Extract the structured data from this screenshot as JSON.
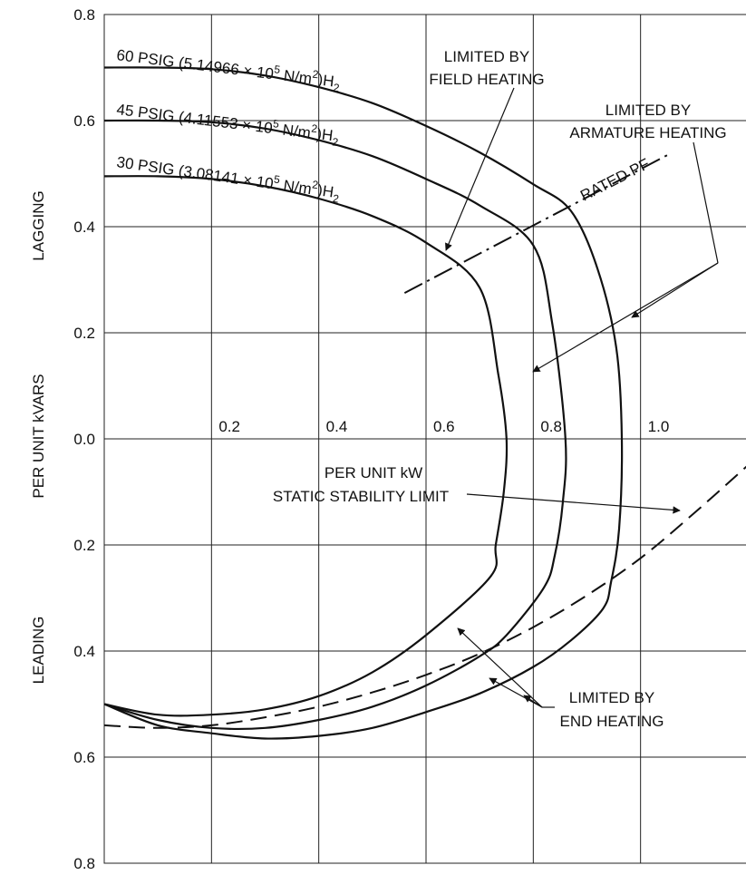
{
  "chart_data": {
    "type": "line",
    "xlabel": "PER UNIT kW",
    "ylabel": "PER UNIT kVARS",
    "ylabel_top": "LAGGING",
    "ylabel_bottom": "LEADING",
    "xlim": [
      0,
      1.2
    ],
    "ylim": [
      -0.8,
      0.8
    ],
    "grid": true,
    "x_ticks": [
      {
        "value": 0.2,
        "label": "0.2"
      },
      {
        "value": 0.4,
        "label": "0.4"
      },
      {
        "value": 0.6,
        "label": "0.6"
      },
      {
        "value": 0.8,
        "label": "0.8"
      },
      {
        "value": 1.0,
        "label": "1.0"
      }
    ],
    "y_ticks": [
      {
        "value": 0.8,
        "label": "0.8"
      },
      {
        "value": 0.6,
        "label": "0.6"
      },
      {
        "value": 0.4,
        "label": "0.4"
      },
      {
        "value": 0.2,
        "label": "0.2"
      },
      {
        "value": 0.0,
        "label": "0.0"
      },
      {
        "value": -0.2,
        "label": "0.2"
      },
      {
        "value": -0.4,
        "label": "0.4"
      },
      {
        "value": -0.6,
        "label": "0.6"
      },
      {
        "value": -0.8,
        "label": "0.8"
      }
    ],
    "series": [
      {
        "name": "60 PSIG",
        "label_parts": {
          "main": "60 PSIG (5.14966 ",
          "times": "×",
          "mid": " 10",
          "exp": "5",
          "unit": " N/m",
          "unit_exp": "2",
          "close": ")H",
          "sub": "2"
        },
        "points": [
          [
            0,
            0.7
          ],
          [
            0.1,
            0.7
          ],
          [
            0.2,
            0.697
          ],
          [
            0.3,
            0.685
          ],
          [
            0.4,
            0.663
          ],
          [
            0.5,
            0.633
          ],
          [
            0.6,
            0.59
          ],
          [
            0.7,
            0.54
          ],
          [
            0.8,
            0.48
          ],
          [
            0.87,
            0.43
          ],
          [
            0.92,
            0.32
          ],
          [
            0.955,
            0.17
          ],
          [
            0.965,
            0.0
          ],
          [
            0.96,
            -0.17
          ],
          [
            0.945,
            -0.27
          ],
          [
            0.93,
            -0.32
          ],
          [
            0.87,
            -0.38
          ],
          [
            0.8,
            -0.43
          ],
          [
            0.7,
            -0.48
          ],
          [
            0.6,
            -0.515
          ],
          [
            0.5,
            -0.545
          ],
          [
            0.4,
            -0.56
          ],
          [
            0.3,
            -0.565
          ],
          [
            0.2,
            -0.555
          ],
          [
            0.1,
            -0.54
          ],
          [
            0,
            -0.5
          ]
        ]
      },
      {
        "name": "45 PSIG",
        "label_parts": {
          "main": "45 PSIG (4.11553 ",
          "times": "×",
          "mid": " 10",
          "exp": "5",
          "unit": " N/m",
          "unit_exp": "2",
          "close": ")H",
          "sub": "2"
        },
        "points": [
          [
            0,
            0.6
          ],
          [
            0.1,
            0.6
          ],
          [
            0.2,
            0.597
          ],
          [
            0.3,
            0.585
          ],
          [
            0.4,
            0.563
          ],
          [
            0.5,
            0.533
          ],
          [
            0.6,
            0.49
          ],
          [
            0.7,
            0.44
          ],
          [
            0.8,
            0.365
          ],
          [
            0.835,
            0.22
          ],
          [
            0.86,
            0.0
          ],
          [
            0.855,
            -0.12
          ],
          [
            0.84,
            -0.22
          ],
          [
            0.82,
            -0.28
          ],
          [
            0.75,
            -0.37
          ],
          [
            0.7,
            -0.41
          ],
          [
            0.6,
            -0.465
          ],
          [
            0.5,
            -0.505
          ],
          [
            0.4,
            -0.53
          ],
          [
            0.3,
            -0.545
          ],
          [
            0.2,
            -0.545
          ],
          [
            0.1,
            -0.53
          ],
          [
            0,
            -0.5
          ]
        ]
      },
      {
        "name": "30 PSIG",
        "label_parts": {
          "main": "30 PSIG (3.08141 ",
          "times": "×",
          "mid": " 10",
          "exp": "5",
          "unit": " N/m",
          "unit_exp": "2",
          "close": ")H",
          "sub": "2"
        },
        "points": [
          [
            0,
            0.495
          ],
          [
            0.1,
            0.495
          ],
          [
            0.2,
            0.49
          ],
          [
            0.3,
            0.476
          ],
          [
            0.4,
            0.453
          ],
          [
            0.5,
            0.42
          ],
          [
            0.6,
            0.37
          ],
          [
            0.7,
            0.285
          ],
          [
            0.735,
            0.12
          ],
          [
            0.75,
            0.0
          ],
          [
            0.745,
            -0.1
          ],
          [
            0.73,
            -0.2
          ],
          [
            0.72,
            -0.26
          ],
          [
            0.6,
            -0.37
          ],
          [
            0.5,
            -0.44
          ],
          [
            0.4,
            -0.485
          ],
          [
            0.3,
            -0.51
          ],
          [
            0.2,
            -0.52
          ],
          [
            0.1,
            -0.52
          ],
          [
            0,
            -0.5
          ]
        ]
      }
    ],
    "static_stability": [
      [
        0,
        -0.54
      ],
      [
        0.1,
        -0.545
      ],
      [
        0.2,
        -0.54
      ],
      [
        0.3,
        -0.525
      ],
      [
        0.4,
        -0.505
      ],
      [
        0.5,
        -0.478
      ],
      [
        0.6,
        -0.445
      ],
      [
        0.7,
        -0.405
      ],
      [
        0.8,
        -0.355
      ],
      [
        0.9,
        -0.295
      ],
      [
        1.0,
        -0.225
      ],
      [
        1.1,
        -0.14
      ],
      [
        1.2,
        -0.05
      ]
    ],
    "rated_pf": [
      [
        0.56,
        0.275
      ],
      [
        1.05,
        0.535
      ]
    ],
    "annotations": {
      "field_heating": [
        "LIMITED BY",
        "FIELD HEATING"
      ],
      "armature_heating": [
        "LIMITED BY",
        "ARMATURE HEATING"
      ],
      "rated_pf": "RATED PF",
      "static_stability": "STATIC STABILITY LIMIT",
      "end_heating": [
        "LIMITED BY",
        "END HEATING"
      ]
    }
  }
}
